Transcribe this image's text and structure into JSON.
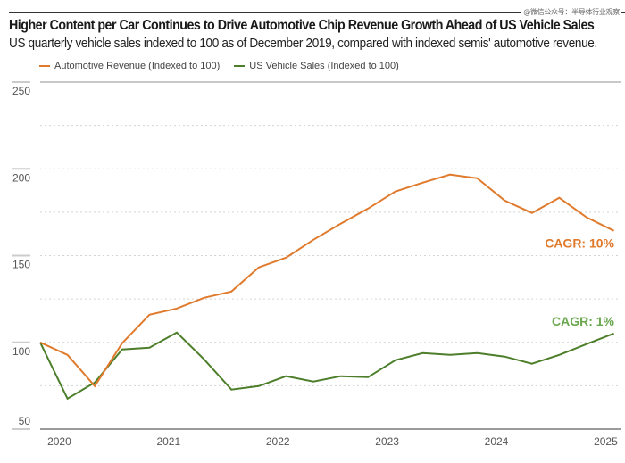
{
  "watermark": "@微信公众号：半导体行业观察",
  "header": {
    "title": "Higher Content per Car Continues to Drive Automotive Chip Revenue Growth Ahead of US Vehicle Sales",
    "subtitle": "US quarterly vehicle sales indexed to 100 as of December 2019, compared with indexed semis' automotive revenue."
  },
  "colors": {
    "automotive_revenue": "#e07b2e",
    "us_vehicle_sales": "#4d7f2b",
    "cagr_sales_label": "#6aa84f"
  },
  "chart_data": {
    "type": "line",
    "title": "Higher Content per Car Continues to Drive Automotive Chip Revenue Growth Ahead of US Vehicle Sales",
    "subtitle": "US quarterly vehicle sales indexed to 100 as of December 2019, compared with indexed semis' automotive revenue.",
    "xlabel": "",
    "ylabel": "",
    "x": [
      "Q4 2019",
      "Q1 2020",
      "Q2 2020",
      "Q3 2020",
      "Q4 2020",
      "Q1 2021",
      "Q2 2021",
      "Q3 2021",
      "Q4 2021",
      "Q1 2022",
      "Q2 2022",
      "Q3 2022",
      "Q4 2022",
      "Q1 2023",
      "Q2 2023",
      "Q3 2023",
      "Q4 2023",
      "Q1 2024",
      "Q2 2024",
      "Q3 2024",
      "Q4 2024",
      "Q1 2025"
    ],
    "x_tick_labels": [
      "2020",
      "2021",
      "2022",
      "2023",
      "2024",
      "2025"
    ],
    "x_tick_positions": [
      0.7,
      4.7,
      8.7,
      12.7,
      16.7,
      20.7
    ],
    "ylim": [
      50,
      250
    ],
    "y_ticks": [
      50,
      100,
      150,
      200,
      250
    ],
    "y_gridlines": [
      75,
      100,
      125,
      150,
      175,
      200,
      225
    ],
    "grid": true,
    "legend_position": "top-left",
    "series": [
      {
        "name": "Automotive Revenue (Indexed to 100)",
        "color": "#e07b2e",
        "values": [
          100,
          92.8,
          74.8,
          99.5,
          115.9,
          119.5,
          125.7,
          129.3,
          143.2,
          148.8,
          159.1,
          168.4,
          177.1,
          186.9,
          192.0,
          196.7,
          194.6,
          181.7,
          174.6,
          183.3,
          172.0,
          164.3
        ],
        "annotation": "CAGR: 10%"
      },
      {
        "name": "US Vehicle Sales (Indexed to 100)",
        "color": "#4d7f2b",
        "values": [
          100,
          67.6,
          76.9,
          95.9,
          96.9,
          105.7,
          90.2,
          72.8,
          74.8,
          80.5,
          77.4,
          80.5,
          79.9,
          89.7,
          93.8,
          92.8,
          93.8,
          91.8,
          87.7,
          92.8,
          99.0,
          105.1
        ],
        "annotation": "CAGR: 1%"
      }
    ]
  }
}
